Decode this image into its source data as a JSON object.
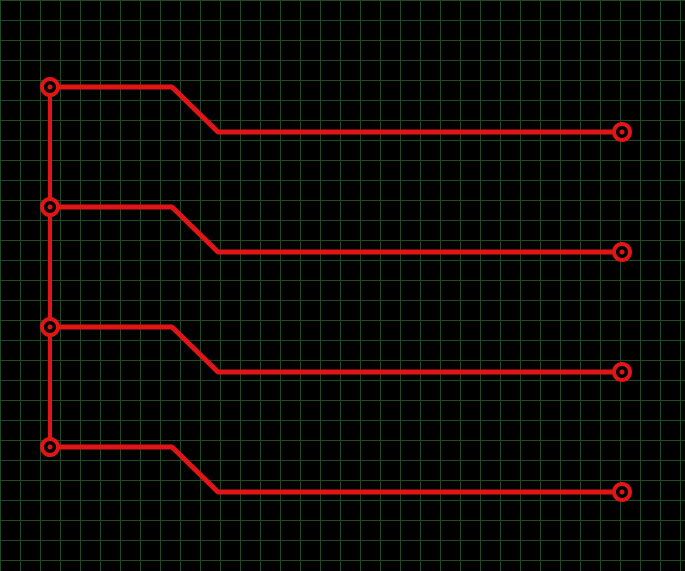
{
  "canvas": {
    "background_color": "#000000",
    "grid_color": "#1f4a24",
    "trace_color": "#e01616"
  },
  "icons": {
    "pad_icon": "ring-pad-icon"
  }
}
